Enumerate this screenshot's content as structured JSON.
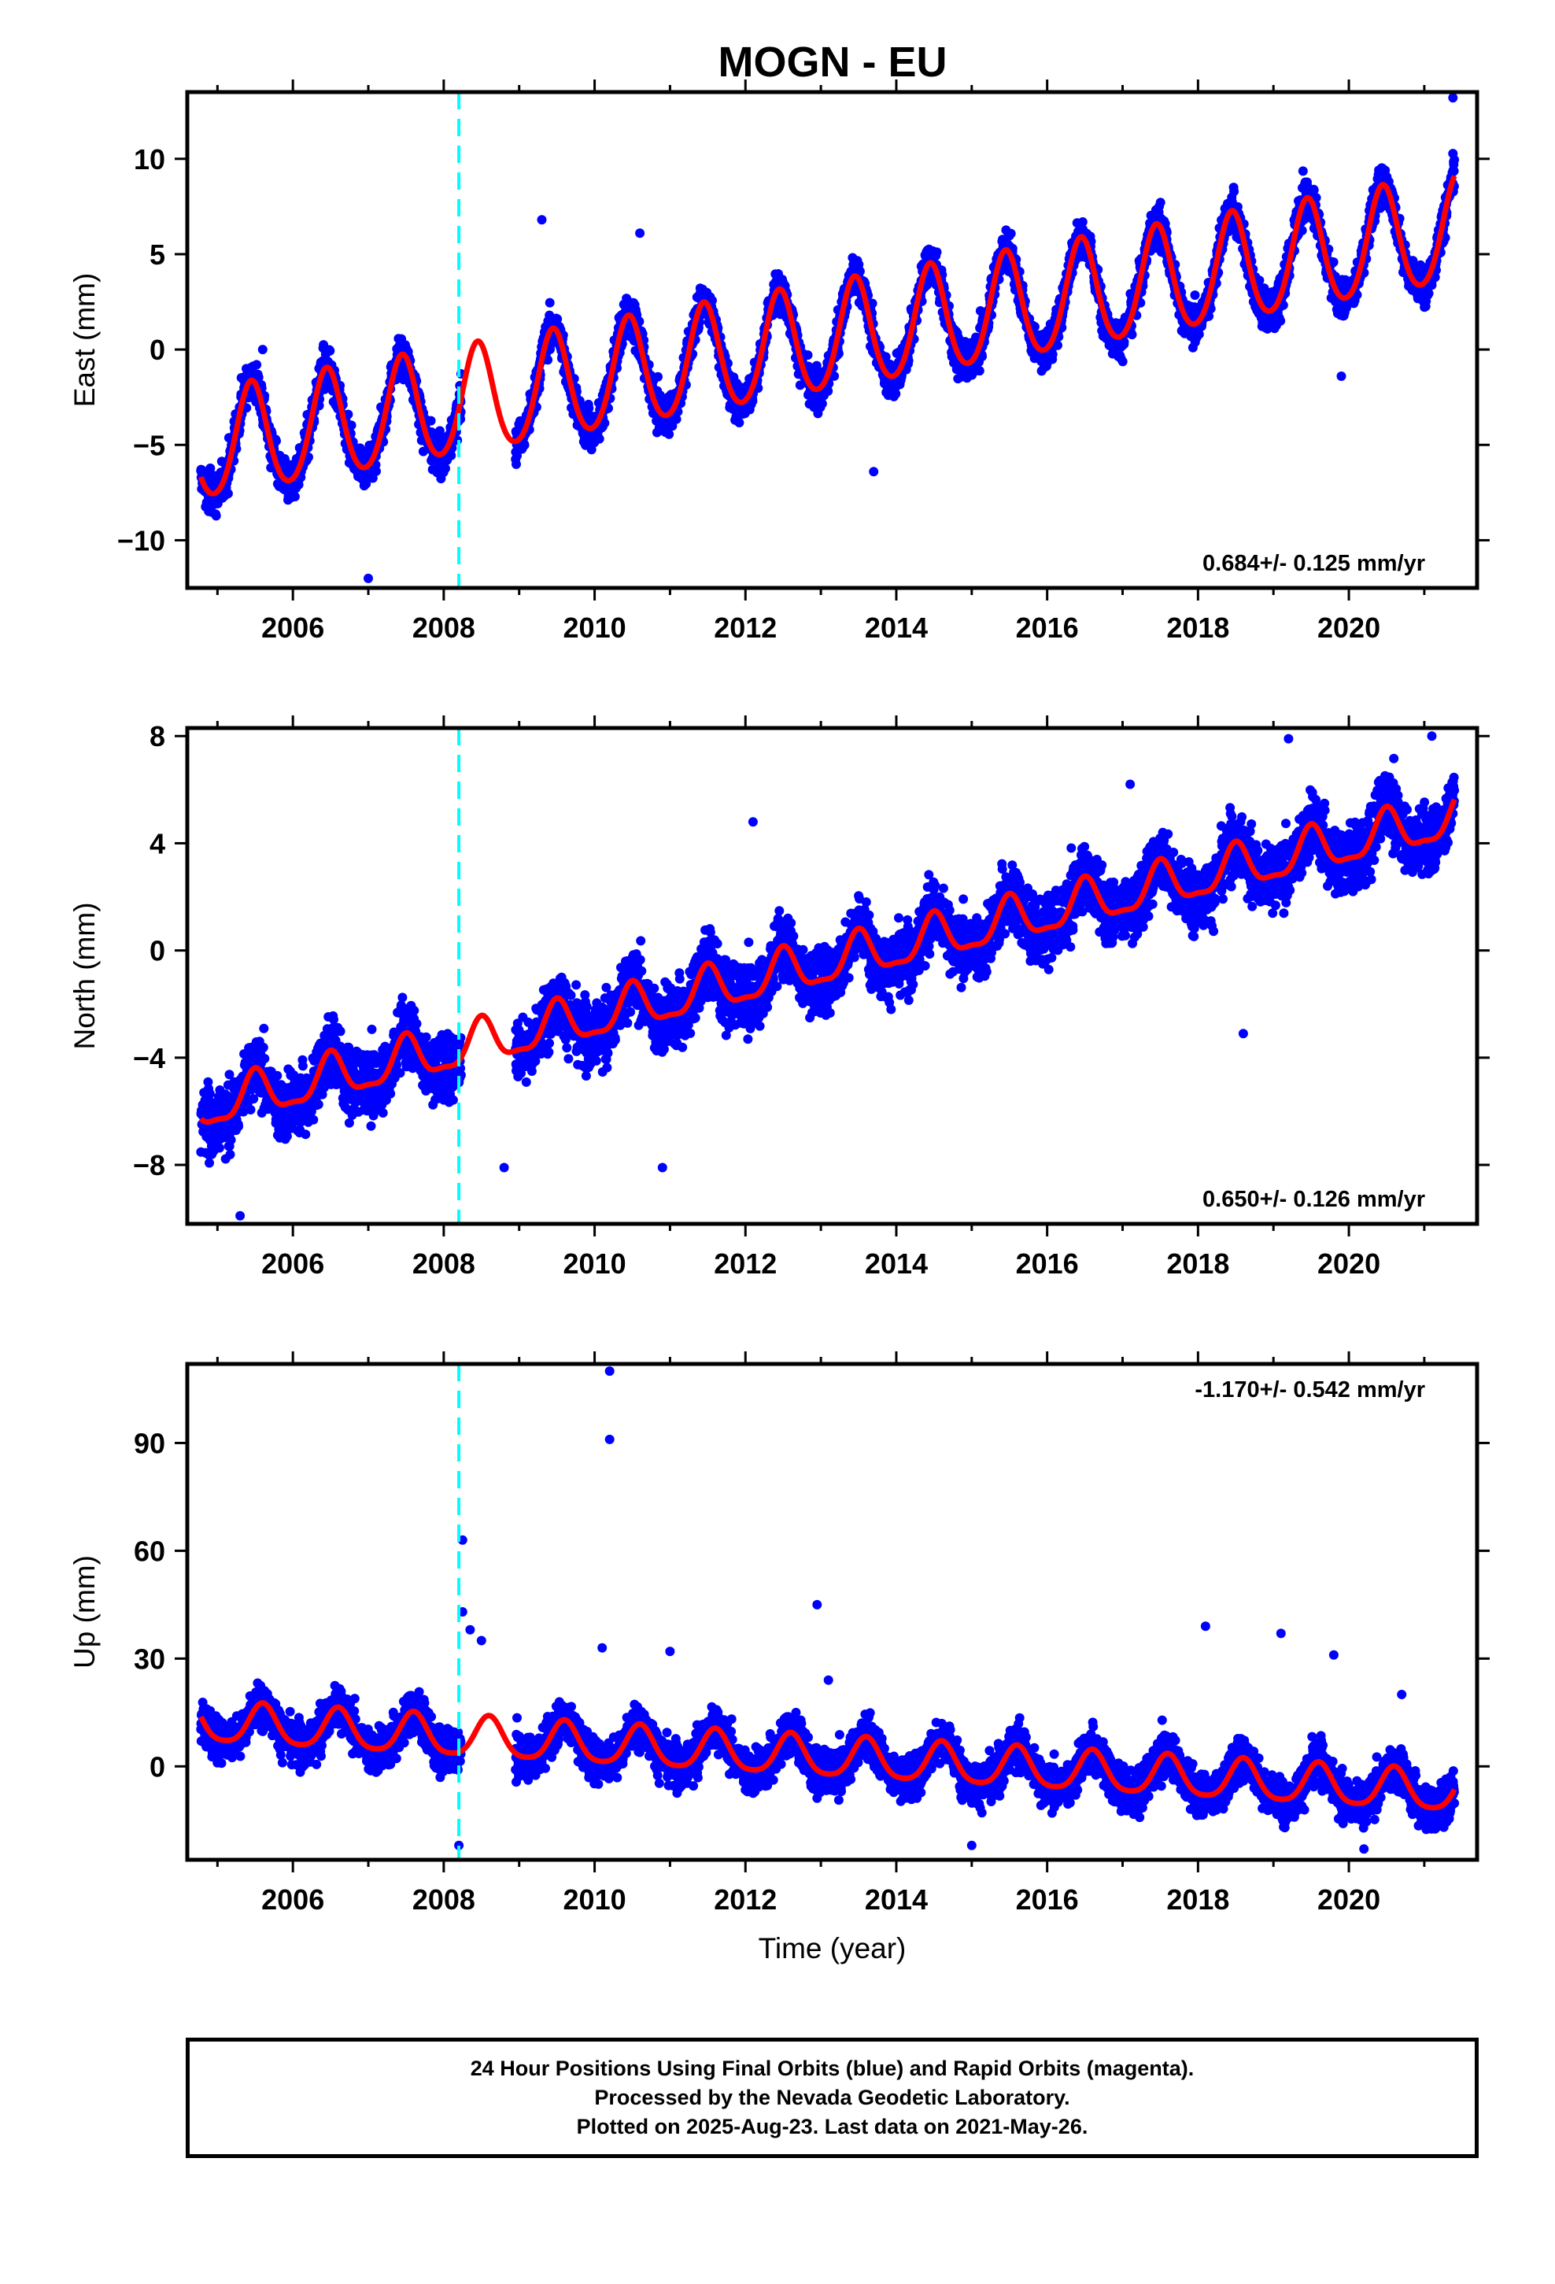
{
  "title": "MOGN - EU",
  "colors": {
    "data_points": "#0000ff",
    "model_line": "#ff0000",
    "equipment_change": "#00ffff",
    "axes": "#000000"
  },
  "chart_data": [
    {
      "type": "scatter",
      "ylabel": "East (mm)",
      "xlim": [
        2004.6,
        2021.7
      ],
      "ylim": [
        -12.5,
        13.5
      ],
      "yticks": [
        -10,
        -5,
        0,
        5,
        10
      ],
      "ytick_labels": [
        "−10",
        "−5",
        "0",
        "5",
        "10"
      ],
      "xticks": [
        2006,
        2008,
        2010,
        2012,
        2014,
        2016,
        2018,
        2020
      ],
      "rate_label": "0.684+/- 0.125 mm/yr",
      "rate_position": "bottom-right",
      "grid": false,
      "equipment_change_x": 2008.2,
      "data_gap": [
        2008.23,
        2008.95
      ],
      "data_range": [
        2004.78,
        2021.4
      ],
      "model": {
        "slope": 0.684,
        "y2013": 0.45,
        "amplitude": 2.8,
        "peak_phase": 0.45,
        "semi_amplitude": 0.3,
        "noise": 1.0
      },
      "outliers": [
        [
          2021.38,
          13.2
        ],
        [
          2009.3,
          6.8
        ],
        [
          2010.6,
          6.1
        ],
        [
          2005.6,
          0.0
        ],
        [
          2007.0,
          -12.0
        ],
        [
          2013.7,
          -6.4
        ],
        [
          2019.9,
          -1.4
        ]
      ]
    },
    {
      "type": "scatter",
      "ylabel": "North (mm)",
      "xlim": [
        2004.6,
        2021.7
      ],
      "ylim": [
        -10.2,
        8.3
      ],
      "yticks": [
        -8,
        -4,
        0,
        4,
        8
      ],
      "ytick_labels": [
        "−8",
        "−4",
        "0",
        "4",
        "8"
      ],
      "xticks": [
        2006,
        2008,
        2010,
        2012,
        2014,
        2016,
        2018,
        2020
      ],
      "rate_label": "0.650+/- 0.126 mm/yr",
      "rate_position": "bottom-right",
      "grid": false,
      "equipment_change_x": 2008.2,
      "data_gap": [
        2008.23,
        2008.95
      ],
      "data_range": [
        2004.78,
        2021.4
      ],
      "model": {
        "slope": 0.65,
        "y2013": -0.55,
        "amplitude": 0.8,
        "peak_phase": 0.5,
        "semi_amplitude": 0.25,
        "noise": 1.2
      },
      "outliers": [
        [
          2021.1,
          8.0
        ],
        [
          2019.2,
          7.9
        ],
        [
          2012.1,
          4.8
        ],
        [
          2010.9,
          -8.1
        ],
        [
          2008.8,
          -8.1
        ],
        [
          2005.3,
          -9.9
        ],
        [
          2017.1,
          6.2
        ],
        [
          2018.6,
          -3.1
        ]
      ]
    },
    {
      "type": "scatter",
      "ylabel": "Up (mm)",
      "xlim": [
        2004.6,
        2021.7
      ],
      "ylim": [
        -26,
        112
      ],
      "yticks": [
        0,
        30,
        60,
        90
      ],
      "ytick_labels": [
        "0",
        "30",
        "60",
        "90"
      ],
      "xticks": [
        2006,
        2008,
        2010,
        2012,
        2014,
        2016,
        2018,
        2020
      ],
      "xtick_labels": [
        "2006",
        "2008",
        "2010",
        "2012",
        "2014",
        "2016",
        "2018",
        "2020"
      ],
      "xlabel": "Time (year)",
      "rate_label": "-1.170+/- 0.542 mm/yr",
      "rate_position": "top-right",
      "grid": false,
      "equipment_change_x": 2008.2,
      "data_gap": [
        2008.23,
        2008.95
      ],
      "data_range": [
        2004.78,
        2021.4
      ],
      "model": {
        "slope": -1.17,
        "y2013": 2.5,
        "amplitude": 5.5,
        "peak_phase": 0.6,
        "semi_amplitude": 1.0,
        "noise": 6.0
      },
      "outliers": [
        [
          2010.2,
          110.0
        ],
        [
          2010.2,
          91.0
        ],
        [
          2008.25,
          63.0
        ],
        [
          2008.25,
          43.0
        ],
        [
          2008.35,
          38.0
        ],
        [
          2008.5,
          35.0
        ],
        [
          2012.95,
          45.0
        ],
        [
          2018.1,
          39.0
        ],
        [
          2019.1,
          37.0
        ],
        [
          2019.8,
          31.0
        ],
        [
          2010.1,
          33.0
        ],
        [
          2011.0,
          32.0
        ],
        [
          2013.1,
          24.0
        ],
        [
          2020.7,
          20.0
        ],
        [
          2008.2,
          -22.0
        ],
        [
          2015.0,
          -22.0
        ],
        [
          2020.2,
          -23.0
        ]
      ]
    }
  ],
  "caption": {
    "line1": "24 Hour Positions Using Final Orbits (blue) and Rapid Orbits (magenta).",
    "line2": "Processed by the Nevada Geodetic Laboratory.",
    "line3": "Plotted on 2025-Aug-23. Last data on 2021-May-26."
  }
}
